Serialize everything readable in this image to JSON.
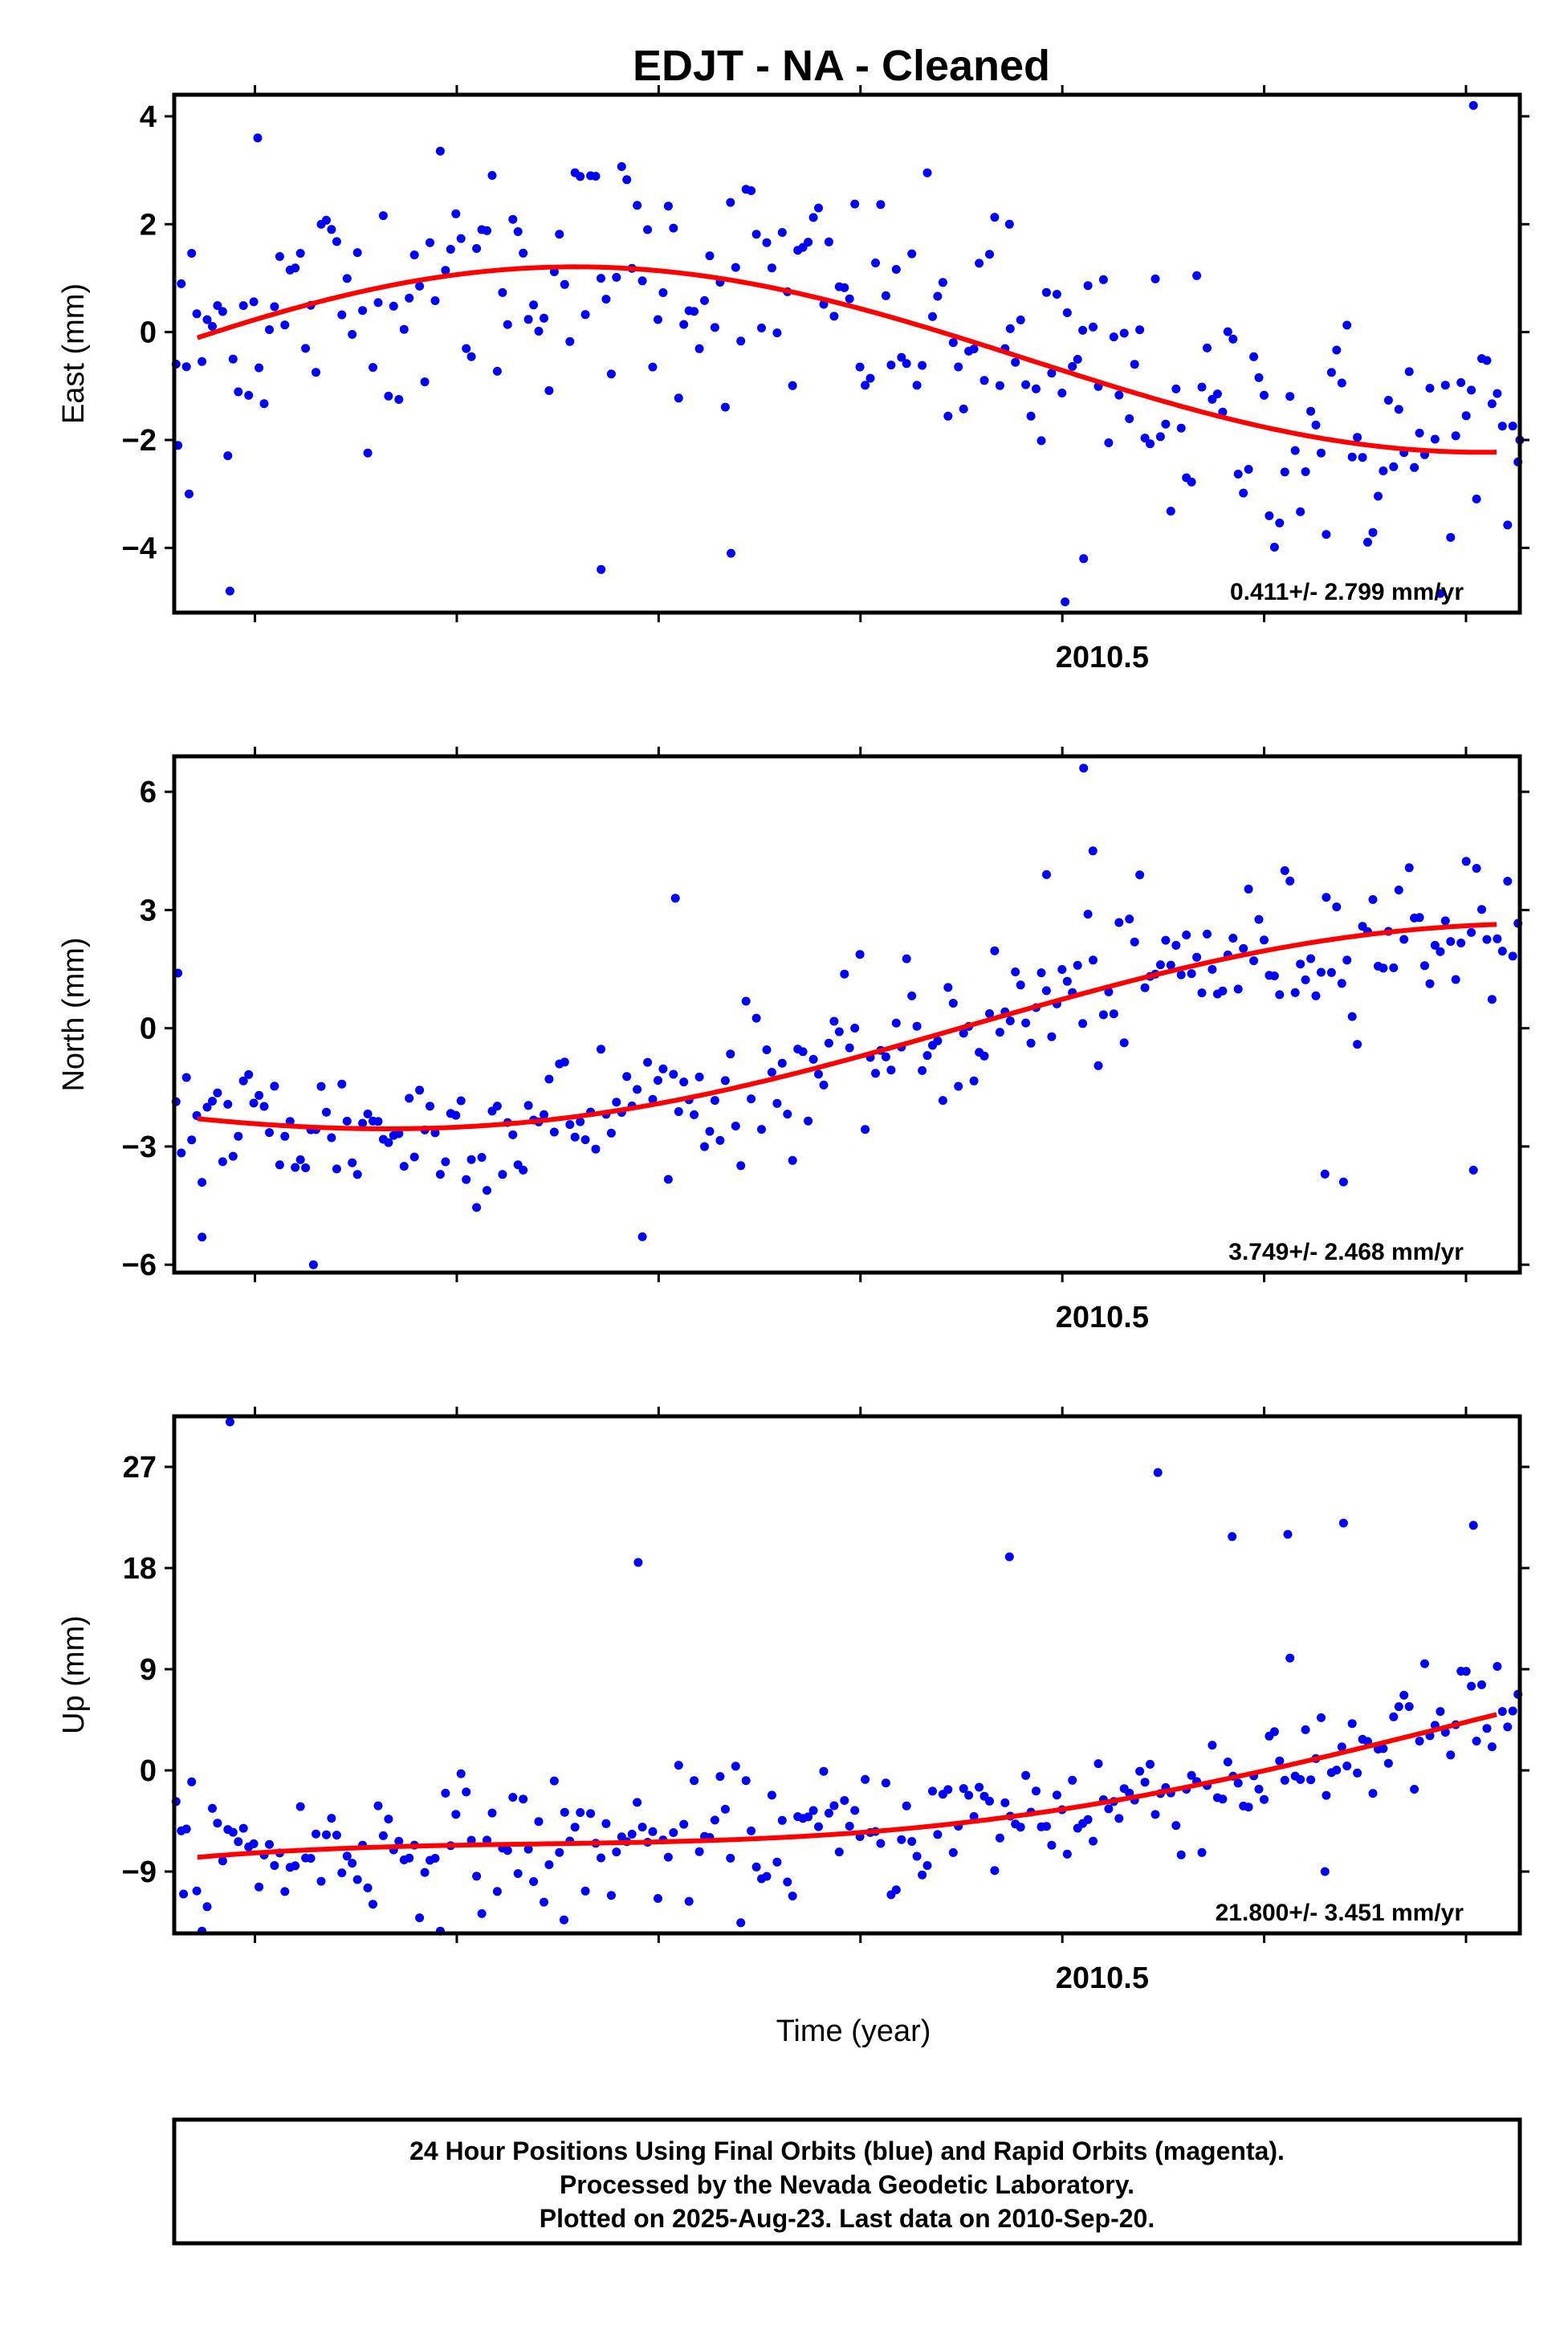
{
  "figure": {
    "title": "EDJT  - NA - Cleaned",
    "footer": [
      "24 Hour Positions Using Final Orbits (blue) and Rapid Orbits (magenta).",
      "Processed by the Nevada Geodetic Laboratory.",
      "Plotted on 2025-Aug-23. Last data on 2010-Sep-20."
    ],
    "colors": {
      "points": "#0000ff",
      "fit": "#ff0000",
      "frame": "#000000"
    }
  },
  "chart_data": [
    {
      "type": "scatter",
      "ylabel": "East (mm)",
      "xlabel": "",
      "x_tick_label": "2010.5",
      "x_tick_labels": [
        2010.5
      ],
      "xlim": [
        2010.0,
        2010.725
      ],
      "ylim": [
        -5.2,
        4.4
      ],
      "yticks": [
        -4,
        -2,
        0,
        2,
        4
      ],
      "yticks_labels": [
        "−4",
        "−2",
        "0",
        "2",
        "4"
      ],
      "rate": "0.411+/- 2.799 mm/yr",
      "fit": {
        "offset": -0.55,
        "trend": 0.41,
        "amp": 1.82,
        "phase": 0.25
      },
      "scatter": 1.15,
      "extremes": [
        [
          2010.002,
          -2.1
        ],
        [
          2010.008,
          -3.0
        ],
        [
          2010.03,
          -4.8
        ],
        [
          2010.045,
          3.6
        ],
        [
          2010.23,
          -4.4
        ],
        [
          2010.3,
          -4.1
        ],
        [
          2010.45,
          2.0
        ],
        [
          2010.49,
          -4.2
        ],
        [
          2010.48,
          -5.0
        ],
        [
          2010.7,
          4.2
        ],
        [
          2010.725,
          -2.0
        ]
      ]
    },
    {
      "type": "scatter",
      "ylabel": "North (mm)",
      "xlabel": "",
      "x_tick_label": "2010.5",
      "x_tick_labels": [
        2010.5
      ],
      "xlim": [
        2010.0,
        2010.725
      ],
      "ylim": [
        -6.2,
        6.9
      ],
      "yticks": [
        -6,
        -3,
        0,
        3,
        6
      ],
      "yticks_labels": [
        "−6",
        "−3",
        "0",
        "3",
        "6"
      ],
      "rate": "3.749+/- 2.468 mm/yr",
      "fit": {
        "offset": -0.2,
        "trend": 3.75,
        "amp": 1.55,
        "phase": 3.6
      },
      "scatter": 0.95,
      "extremes": [
        [
          2010.002,
          1.4
        ],
        [
          2010.015,
          -5.3
        ],
        [
          2010.075,
          -6.0
        ],
        [
          2010.27,
          3.3
        ],
        [
          2010.47,
          3.9
        ],
        [
          2010.49,
          6.6
        ],
        [
          2010.495,
          4.5
        ],
        [
          2010.63,
          -3.9
        ],
        [
          2010.62,
          -3.7
        ],
        [
          2010.7,
          -3.6
        ]
      ]
    },
    {
      "type": "scatter",
      "ylabel": "Up (mm)",
      "xlabel": "Time (year)",
      "x_tick_label": "2010.5",
      "x_tick_labels": [
        2010.5
      ],
      "xlim": [
        2010.0,
        2010.725
      ],
      "ylim": [
        -14.5,
        31.5
      ],
      "yticks": [
        -9,
        0,
        9,
        18,
        27
      ],
      "yticks_labels": [
        "−9",
        "0",
        "9",
        "18",
        "27"
      ],
      "rate": "21.800+/- 3.451 mm/yr",
      "fit": {
        "offset": -3.0,
        "trend": 21.8,
        "amp": 3.1,
        "phase": 1.9
      },
      "scatter": 2.9,
      "extremes": [
        [
          2010.03,
          31.0
        ],
        [
          2010.25,
          18.5
        ],
        [
          2010.21,
          -13.3
        ],
        [
          2010.45,
          19.0
        ],
        [
          2010.53,
          26.5
        ],
        [
          2010.57,
          20.8
        ],
        [
          2010.6,
          21.0
        ],
        [
          2010.63,
          22.0
        ],
        [
          2010.7,
          21.8
        ],
        [
          2010.62,
          -9.0
        ],
        [
          2010.005,
          -11.0
        ]
      ]
    }
  ]
}
